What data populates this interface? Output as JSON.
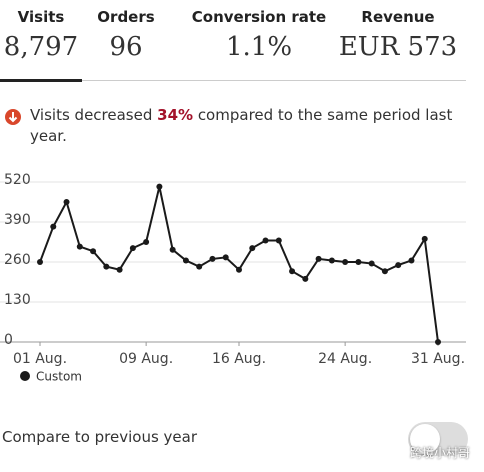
{
  "tabs": [
    {
      "label": "Visits",
      "value": "8,797"
    },
    {
      "label": "Orders",
      "value": "96"
    },
    {
      "label": "Conversion rate",
      "value": "1.1%"
    },
    {
      "label": "Revenue",
      "value": "EUR 573"
    }
  ],
  "notice": {
    "before": "Visits decreased ",
    "highlight": "34%",
    "after": " compared to the same period last year."
  },
  "chart_data": {
    "type": "line",
    "x": [
      1,
      2,
      3,
      4,
      5,
      6,
      7,
      8,
      9,
      10,
      11,
      12,
      13,
      14,
      15,
      16,
      17,
      18,
      19,
      20,
      21,
      22,
      23,
      24,
      25,
      26,
      27,
      28,
      29,
      30,
      31
    ],
    "series": [
      {
        "name": "Custom",
        "color": "#1a1a1a",
        "values": [
          260,
          375,
          455,
          310,
          295,
          245,
          235,
          305,
          325,
          505,
          300,
          265,
          245,
          270,
          275,
          235,
          305,
          330,
          330,
          230,
          205,
          270,
          265,
          260,
          260,
          255,
          230,
          250,
          265,
          335,
          0
        ]
      }
    ],
    "xlim": [
      1,
      31
    ],
    "xticks": [
      {
        "value": 1,
        "label": "01 Aug."
      },
      {
        "value": 9,
        "label": "09 Aug."
      },
      {
        "value": 16,
        "label": "16 Aug."
      },
      {
        "value": 24,
        "label": "24 Aug."
      },
      {
        "value": 31,
        "label": "31 Aug."
      }
    ],
    "ylim": [
      0,
      520
    ],
    "yticks": [
      0,
      130,
      260,
      390,
      520
    ],
    "grid": true
  },
  "toggle": {
    "label": "Compare to previous year"
  },
  "watermark": "跨境小村哥"
}
